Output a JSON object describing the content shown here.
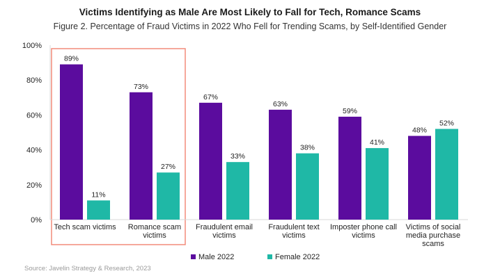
{
  "chart_data": {
    "type": "bar",
    "title": "Victims Identifying as Male Are Most Likely to Fall for Tech, Romance Scams",
    "subtitle": "Figure 2. Percentage of Fraud Victims in 2022 Who Fell for Trending Scams, by Self-Identified Gender",
    "categories": [
      [
        "Tech scam victims"
      ],
      [
        "Romance scam",
        "victims"
      ],
      [
        "Fraudulent email",
        "victims"
      ],
      [
        "Fraudulent text",
        "victims"
      ],
      [
        "Imposter phone call",
        "victims"
      ],
      [
        "Victims of social",
        "media purchase",
        "scams"
      ]
    ],
    "series": [
      {
        "name": "Male 2022",
        "color": "#5b0c9e",
        "values": [
          89,
          73,
          67,
          63,
          59,
          48
        ],
        "labels": [
          "89%",
          "73%",
          "67%",
          "63%",
          "59%",
          "48%"
        ]
      },
      {
        "name": "Female 2022",
        "color": "#1fb8a6",
        "values": [
          11,
          27,
          33,
          38,
          41,
          52
        ],
        "labels": [
          "11%",
          "27%",
          "33%",
          "38%",
          "41%",
          "52%"
        ]
      }
    ],
    "ylim": [
      0,
      100
    ],
    "yticks": [
      0,
      20,
      40,
      60,
      80,
      100
    ],
    "ytick_labels": [
      "0%",
      "20%",
      "40%",
      "60%",
      "80%",
      "100%"
    ],
    "legend_position": "bottom-center",
    "grid": false,
    "highlight": {
      "categories": [
        0,
        1
      ],
      "color": "#f28b7a"
    },
    "source": "Source: Javelin Strategy & Research, 2023"
  }
}
